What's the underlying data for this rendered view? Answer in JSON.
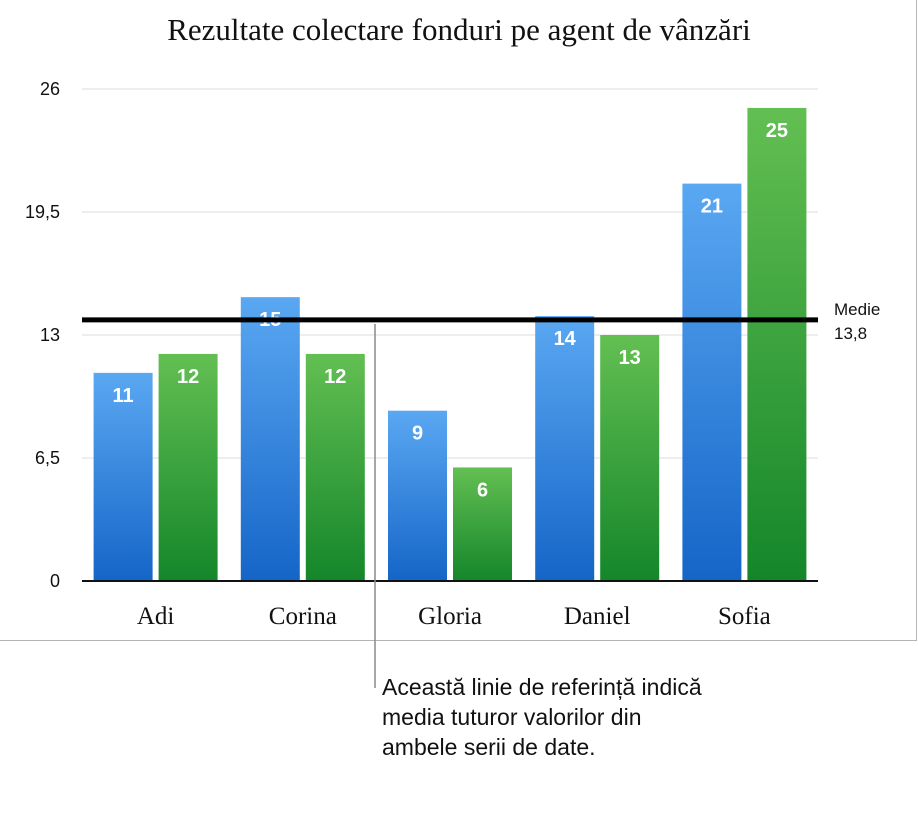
{
  "chart_data": {
    "type": "bar",
    "title": "Rezultate colectare fonduri pe agent de vânzări",
    "categories": [
      "Adi",
      "Corina",
      "Gloria",
      "Daniel",
      "Sofia"
    ],
    "series": [
      {
        "values": [
          11,
          15,
          9,
          14,
          21
        ],
        "color": "#3a8ee6"
      },
      {
        "values": [
          12,
          12,
          6,
          13,
          25
        ],
        "color": "#3fa53c"
      }
    ],
    "data_labels": {
      "series_0": [
        "11",
        "15",
        "9",
        "14",
        "21"
      ],
      "series_1": [
        "12",
        "12",
        "6",
        "13",
        "25"
      ]
    },
    "ylim": [
      0,
      26
    ],
    "y_ticks": [
      0,
      6.5,
      13,
      19.5,
      26
    ],
    "y_tick_labels": [
      "0",
      "6,5",
      "13",
      "19,5",
      "26"
    ],
    "grid": true,
    "reference_line": {
      "value": 13.8,
      "label": "Medie",
      "value_label": "13,8"
    }
  },
  "callout": {
    "text": "Această linie de referință indică media tuturor valorilor din ambele serii de date."
  }
}
